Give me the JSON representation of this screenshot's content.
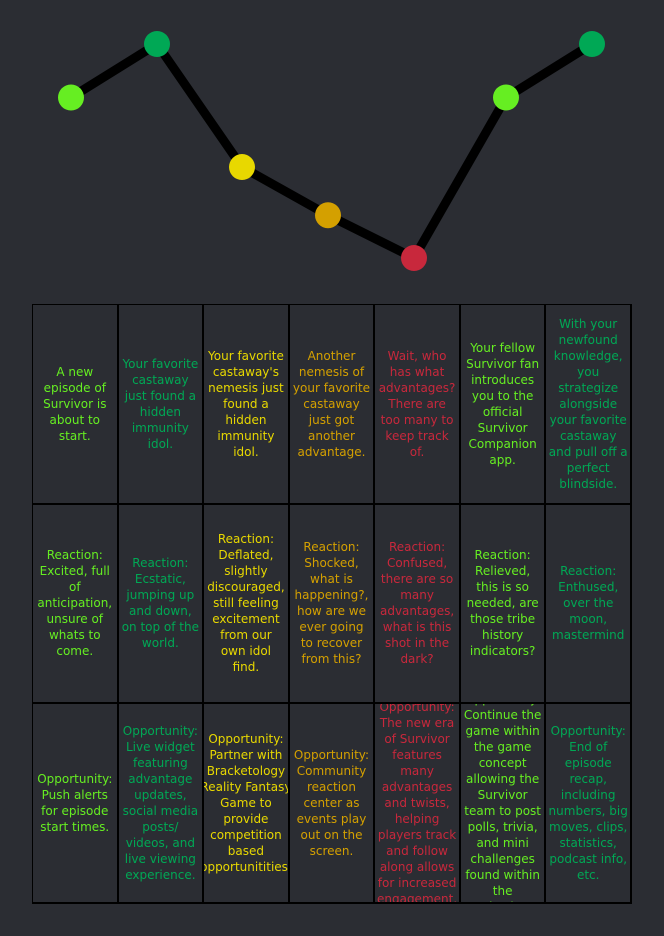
{
  "colors": {
    "background": "#2b2d33",
    "line": "#000000",
    "light-green": "#66ee22",
    "green": "#00a855",
    "yellow": "#e8d800",
    "gold": "#d4a000",
    "red": "#c8283c"
  },
  "journey": {
    "stages": [
      {
        "level": 3,
        "color": "light-green",
        "situation": "A new episode of Survivor is about to start.",
        "reaction": "Reaction: Excited, full of anticipation, unsure of whats to come.",
        "opportunity": "Opportunity: Push alerts for episode start times."
      },
      {
        "level": 4,
        "color": "green",
        "situation": "Your favorite castaway just found a hidden immunity idol.",
        "reaction": "Reaction: Ecstatic, jumping up and down, on top of the world.",
        "opportunity": "Opportunity: Live widget featuring advantage updates, social media posts/ videos, and live viewing experience."
      },
      {
        "level": 1.7,
        "color": "yellow",
        "situation": "Your favorite castaway's nemesis just found a hidden immunity idol.",
        "reaction": "Reaction: Deflated, slightly discouraged, still feeling excitement from our own idol find.",
        "opportunity": "Opportunity: Partner with Bracketology Reality Fantasy Game to provide competition based opportunitities."
      },
      {
        "level": 0.8,
        "color": "gold",
        "situation": "Another nemesis of your favorite castaway just got another advantage.",
        "reaction": "Reaction: Shocked, what is happening?, how are we ever going to recover from this?",
        "opportunity": "Opportunity: Community reaction center as events play out on the screen."
      },
      {
        "level": 0,
        "color": "red",
        "situation": "Wait, who has what advantages? There are too many to keep track of.",
        "reaction": "Reaction: Confused, there are so many advantages, what is this shot in the dark?",
        "opportunity": "Opportunity: The new era of Survivor features many advantages and twists, helping players track and follow along allows for increased engagement."
      },
      {
        "level": 3,
        "color": "light-green",
        "situation": "Your fellow Survivor fan introduces you to the official Survivor Companion app.",
        "reaction": "Reaction: Relieved, this is so needed, are those tribe history indicators?",
        "opportunity": "Opportunity: Continue the game within the game concept allowing the Survivor team to post polls, trivia, and mini challenges found within the episodes."
      },
      {
        "level": 4,
        "color": "green",
        "situation": "With your newfound knowledge, you strategize alongside your favorite castaway and pull off a perfect blindside.",
        "reaction": "Reaction: Enthused, over the moon, mastermind",
        "opportunity": "Opportunity: End of episode recap, including numbers, big moves, clips, statistics, podcast info, etc."
      }
    ]
  }
}
